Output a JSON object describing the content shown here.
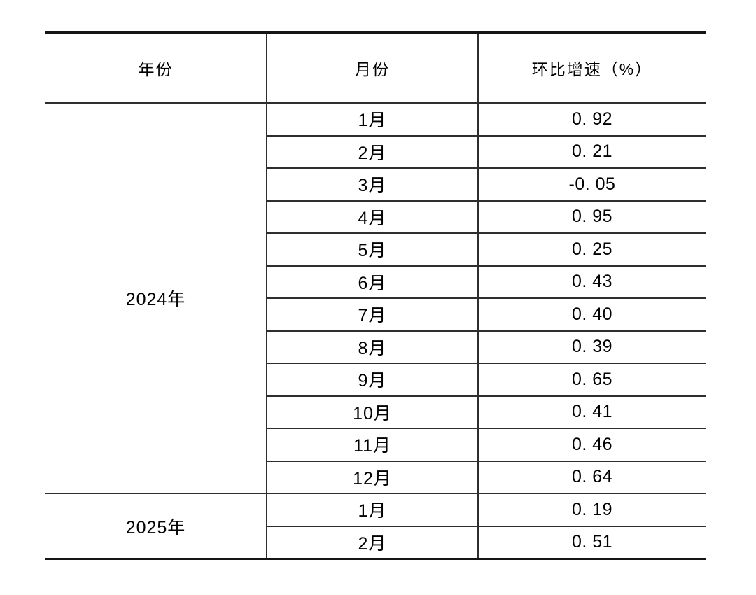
{
  "table": {
    "columns": [
      {
        "label": "年份"
      },
      {
        "label": "月份"
      },
      {
        "label": "环比增速（%）"
      }
    ],
    "sections": [
      {
        "year": "2024年",
        "rows": [
          {
            "month": "1月",
            "value": "0. 92"
          },
          {
            "month": "2月",
            "value": "0. 21"
          },
          {
            "month": "3月",
            "value": "-0. 05"
          },
          {
            "month": "4月",
            "value": "0. 95"
          },
          {
            "month": "5月",
            "value": "0. 25"
          },
          {
            "month": "6月",
            "value": "0. 43"
          },
          {
            "month": "7月",
            "value": "0. 40"
          },
          {
            "month": "8月",
            "value": "0. 39"
          },
          {
            "month": "9月",
            "value": "0. 65"
          },
          {
            "month": "10月",
            "value": "0. 41"
          },
          {
            "month": "11月",
            "value": "0. 46"
          },
          {
            "month": "12月",
            "value": "0. 64"
          }
        ]
      },
      {
        "year": "2025年",
        "rows": [
          {
            "month": "1月",
            "value": "0. 19"
          },
          {
            "month": "2月",
            "value": "0. 51"
          }
        ]
      }
    ]
  },
  "colors": {
    "thick_rule": "#141414",
    "thin_rule": "#2e2e2e",
    "text": "#000000",
    "background": "#ffffff"
  }
}
